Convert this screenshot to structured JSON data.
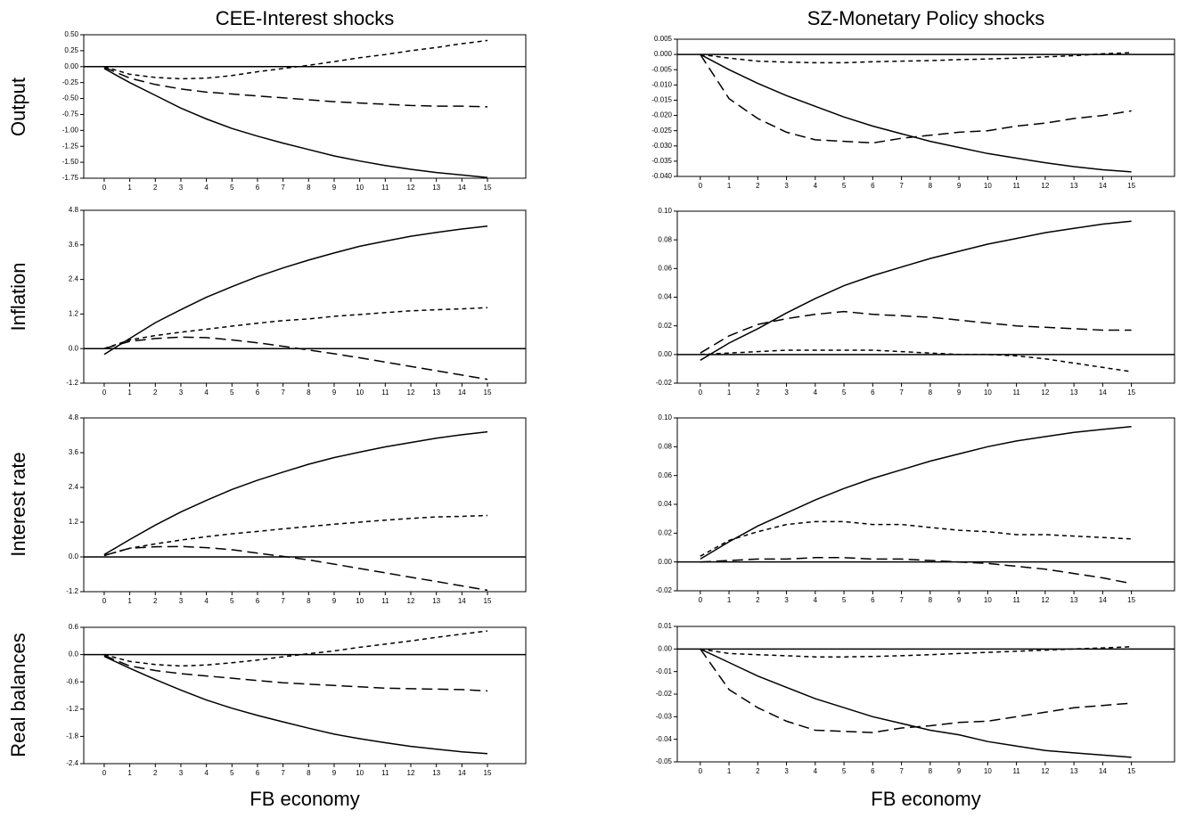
{
  "column_titles": [
    "CEE-Interest shocks",
    "SZ-Monetary Policy shocks"
  ],
  "row_labels": [
    "Output",
    "Inflation",
    "Interest rate",
    "Real balances"
  ],
  "x_labels": [
    "FB economy",
    "FB economy"
  ],
  "chart_data": [
    {
      "type": "line",
      "x": [
        0,
        1,
        2,
        3,
        4,
        5,
        6,
        7,
        8,
        9,
        10,
        11,
        12,
        13,
        14,
        15
      ],
      "xlim": [
        -0.8,
        16.5
      ],
      "ylim": [
        -1.75,
        0.5
      ],
      "yticks": [
        {
          "value": 0.5,
          "label": "0.50"
        },
        {
          "value": 0.25,
          "label": "0.25"
        },
        {
          "value": 0,
          "label": "0.00"
        },
        {
          "value": -0.25,
          "label": "-0.25"
        },
        {
          "value": -0.5,
          "label": "-0.50"
        },
        {
          "value": -0.75,
          "label": "-0.75"
        },
        {
          "value": -1,
          "label": "-1.00"
        },
        {
          "value": -1.25,
          "label": "-1.25"
        },
        {
          "value": -1.5,
          "label": "-1.50"
        },
        {
          "value": -1.75,
          "label": "-1.75"
        }
      ],
      "series": [
        {
          "style": "solid",
          "color": "#000000",
          "values": [
            -0.03,
            -0.25,
            -0.45,
            -0.65,
            -0.82,
            -0.97,
            -1.09,
            -1.2,
            -1.3,
            -1.4,
            -1.48,
            -1.55,
            -1.61,
            -1.66,
            -1.7,
            -1.74
          ]
        },
        {
          "style": "dash",
          "color": "#000000",
          "values": [
            0,
            -0.12,
            -0.17,
            -0.19,
            -0.18,
            -0.14,
            -0.08,
            -0.03,
            0.02,
            0.08,
            0.14,
            0.19,
            0.25,
            0.3,
            0.36,
            0.41
          ]
        },
        {
          "style": "longdash",
          "color": "#000000",
          "values": [
            -0.01,
            -0.18,
            -0.28,
            -0.35,
            -0.4,
            -0.43,
            -0.46,
            -0.49,
            -0.52,
            -0.55,
            -0.57,
            -0.59,
            -0.61,
            -0.62,
            -0.62,
            -0.63
          ]
        }
      ]
    },
    {
      "type": "line",
      "x": [
        0,
        1,
        2,
        3,
        4,
        5,
        6,
        7,
        8,
        9,
        10,
        11,
        12,
        13,
        14,
        15
      ],
      "xlim": [
        -0.8,
        16.5
      ],
      "ylim": [
        -0.04,
        0.005
      ],
      "yticks": [
        {
          "value": 0.005,
          "label": "0.005"
        },
        {
          "value": 0,
          "label": "0.000"
        },
        {
          "value": -0.005,
          "label": "-0.005"
        },
        {
          "value": -0.01,
          "label": "-0.010"
        },
        {
          "value": -0.015,
          "label": "-0.015"
        },
        {
          "value": -0.02,
          "label": "-0.020"
        },
        {
          "value": -0.025,
          "label": "-0.025"
        },
        {
          "value": -0.03,
          "label": "-0.030"
        },
        {
          "value": -0.035,
          "label": "-0.035"
        },
        {
          "value": -0.04,
          "label": "-0.040"
        }
      ],
      "series": [
        {
          "style": "solid",
          "color": "#000000",
          "values": [
            0,
            -0.005,
            -0.0095,
            -0.0135,
            -0.017,
            -0.0205,
            -0.0235,
            -0.026,
            -0.0285,
            -0.0305,
            -0.0325,
            -0.034,
            -0.0355,
            -0.0368,
            -0.0378,
            -0.0385
          ]
        },
        {
          "style": "dash",
          "color": "#000000",
          "values": [
            0,
            -0.0012,
            -0.0022,
            -0.0025,
            -0.0027,
            -0.0027,
            -0.0024,
            -0.0022,
            -0.002,
            -0.0017,
            -0.0015,
            -0.0012,
            -0.0008,
            -0.0004,
            0.0002,
            0.0006
          ]
        },
        {
          "style": "longdash",
          "color": "#000000",
          "values": [
            0,
            -0.0145,
            -0.021,
            -0.0255,
            -0.028,
            -0.0285,
            -0.029,
            -0.0275,
            -0.0265,
            -0.0255,
            -0.025,
            -0.0235,
            -0.0225,
            -0.021,
            -0.02,
            -0.0185
          ]
        }
      ]
    },
    {
      "type": "line",
      "x": [
        0,
        1,
        2,
        3,
        4,
        5,
        6,
        7,
        8,
        9,
        10,
        11,
        12,
        13,
        14,
        15
      ],
      "xlim": [
        -0.8,
        16.5
      ],
      "ylim": [
        -1.2,
        4.8
      ],
      "yticks": [
        4.8,
        3.6,
        2.4,
        1.2,
        {
          "value": 0,
          "label": "0.0"
        },
        -1.2
      ],
      "series": [
        {
          "style": "solid",
          "color": "#000000",
          "values": [
            -0.2,
            0.35,
            0.9,
            1.35,
            1.78,
            2.15,
            2.5,
            2.8,
            3.07,
            3.32,
            3.55,
            3.73,
            3.9,
            4.03,
            4.15,
            4.25
          ]
        },
        {
          "style": "dash",
          "color": "#000000",
          "values": [
            0,
            0.3,
            0.45,
            0.57,
            0.67,
            0.78,
            0.88,
            0.97,
            1.03,
            1.12,
            1.18,
            1.25,
            1.31,
            1.35,
            1.38,
            1.42
          ]
        },
        {
          "style": "longdash",
          "color": "#000000",
          "values": [
            0,
            0.25,
            0.35,
            0.4,
            0.38,
            0.3,
            0.2,
            0.08,
            -0.05,
            -0.18,
            -0.32,
            -0.47,
            -0.62,
            -0.77,
            -0.92,
            -1.07
          ]
        }
      ]
    },
    {
      "type": "line",
      "x": [
        0,
        1,
        2,
        3,
        4,
        5,
        6,
        7,
        8,
        9,
        10,
        11,
        12,
        13,
        14,
        15
      ],
      "xlim": [
        -0.8,
        16.5
      ],
      "ylim": [
        -0.02,
        0.1
      ],
      "yticks": [
        {
          "value": 0.1,
          "label": "0.10"
        },
        {
          "value": 0.08,
          "label": "0.08"
        },
        {
          "value": 0.06,
          "label": "0.06"
        },
        {
          "value": 0.04,
          "label": "0.04"
        },
        {
          "value": 0.02,
          "label": "0.02"
        },
        {
          "value": 0,
          "label": "0.00"
        },
        {
          "value": -0.02,
          "label": "-0.02"
        }
      ],
      "series": [
        {
          "style": "solid",
          "color": "#000000",
          "values": [
            -0.004,
            0.008,
            0.018,
            0.029,
            0.039,
            0.048,
            0.055,
            0.061,
            0.067,
            0.072,
            0.077,
            0.081,
            0.085,
            0.088,
            0.091,
            0.093
          ]
        },
        {
          "style": "longdash",
          "color": "#000000",
          "values": [
            0.001,
            0.013,
            0.021,
            0.025,
            0.028,
            0.03,
            0.028,
            0.027,
            0.026,
            0.024,
            0.022,
            0.02,
            0.019,
            0.018,
            0.017,
            0.017
          ]
        },
        {
          "style": "dash",
          "color": "#000000",
          "values": [
            0,
            0.001,
            0.002,
            0.003,
            0.003,
            0.003,
            0.003,
            0.002,
            0.001,
            0,
            0,
            -0.001,
            -0.003,
            -0.006,
            -0.009,
            -0.012
          ]
        }
      ]
    },
    {
      "type": "line",
      "x": [
        0,
        1,
        2,
        3,
        4,
        5,
        6,
        7,
        8,
        9,
        10,
        11,
        12,
        13,
        14,
        15
      ],
      "xlim": [
        -0.8,
        16.5
      ],
      "ylim": [
        -1.2,
        4.8
      ],
      "yticks": [
        4.8,
        3.6,
        2.4,
        1.2,
        {
          "value": 0,
          "label": "0.0"
        },
        -1.2
      ],
      "series": [
        {
          "style": "solid",
          "color": "#000000",
          "values": [
            0.08,
            0.6,
            1.1,
            1.55,
            1.95,
            2.33,
            2.65,
            2.93,
            3.2,
            3.43,
            3.62,
            3.8,
            3.95,
            4.1,
            4.22,
            4.32
          ]
        },
        {
          "style": "dash",
          "color": "#000000",
          "values": [
            0.05,
            0.3,
            0.45,
            0.58,
            0.7,
            0.8,
            0.88,
            0.97,
            1.05,
            1.13,
            1.2,
            1.27,
            1.33,
            1.38,
            1.4,
            1.43
          ]
        },
        {
          "style": "longdash",
          "color": "#000000",
          "values": [
            0.05,
            0.3,
            0.35,
            0.36,
            0.32,
            0.25,
            0.13,
            0.02,
            -0.1,
            -0.25,
            -0.4,
            -0.55,
            -0.7,
            -0.85,
            -1,
            -1.15
          ]
        }
      ]
    },
    {
      "type": "line",
      "x": [
        0,
        1,
        2,
        3,
        4,
        5,
        6,
        7,
        8,
        9,
        10,
        11,
        12,
        13,
        14,
        15
      ],
      "xlim": [
        -0.8,
        16.5
      ],
      "ylim": [
        -0.02,
        0.1
      ],
      "yticks": [
        {
          "value": 0.1,
          "label": "0.10"
        },
        {
          "value": 0.08,
          "label": "0.08"
        },
        {
          "value": 0.06,
          "label": "0.06"
        },
        {
          "value": 0.04,
          "label": "0.04"
        },
        {
          "value": 0.02,
          "label": "0.02"
        },
        {
          "value": 0,
          "label": "0.00"
        },
        {
          "value": -0.02,
          "label": "-0.02"
        }
      ],
      "series": [
        {
          "style": "solid",
          "color": "#000000",
          "values": [
            0.002,
            0.014,
            0.025,
            0.034,
            0.043,
            0.051,
            0.058,
            0.064,
            0.07,
            0.075,
            0.08,
            0.084,
            0.087,
            0.09,
            0.092,
            0.094
          ]
        },
        {
          "style": "dash",
          "color": "#000000",
          "values": [
            0.004,
            0.015,
            0.021,
            0.026,
            0.028,
            0.028,
            0.026,
            0.026,
            0.024,
            0.022,
            0.021,
            0.019,
            0.019,
            0.018,
            0.017,
            0.016
          ]
        },
        {
          "style": "longdash",
          "color": "#000000",
          "values": [
            0,
            0.001,
            0.002,
            0.002,
            0.003,
            0.003,
            0.002,
            0.002,
            0.001,
            0,
            -0.001,
            -0.003,
            -0.005,
            -0.008,
            -0.011,
            -0.015
          ]
        }
      ]
    },
    {
      "type": "line",
      "x": [
        0,
        1,
        2,
        3,
        4,
        5,
        6,
        7,
        8,
        9,
        10,
        11,
        12,
        13,
        14,
        15
      ],
      "xlim": [
        -0.8,
        16.5
      ],
      "ylim": [
        -2.4,
        0.6
      ],
      "yticks": [
        0.6,
        {
          "value": 0,
          "label": "0.0"
        },
        -0.6,
        -1.2,
        -1.8,
        -2.4
      ],
      "series": [
        {
          "style": "solid",
          "color": "#000000",
          "values": [
            -0.04,
            -0.3,
            -0.55,
            -0.78,
            -1,
            -1.18,
            -1.34,
            -1.48,
            -1.62,
            -1.75,
            -1.85,
            -1.94,
            -2.02,
            -2.08,
            -2.14,
            -2.18
          ]
        },
        {
          "style": "dash",
          "color": "#000000",
          "values": [
            0,
            -0.15,
            -0.22,
            -0.25,
            -0.23,
            -0.18,
            -0.12,
            -0.05,
            0.02,
            0.08,
            0.16,
            0.23,
            0.3,
            0.38,
            0.45,
            0.52
          ]
        },
        {
          "style": "longdash",
          "color": "#000000",
          "values": [
            -0.02,
            -0.25,
            -0.35,
            -0.42,
            -0.47,
            -0.52,
            -0.57,
            -0.62,
            -0.65,
            -0.68,
            -0.71,
            -0.74,
            -0.75,
            -0.76,
            -0.77,
            -0.8
          ]
        }
      ]
    },
    {
      "type": "line",
      "x": [
        0,
        1,
        2,
        3,
        4,
        5,
        6,
        7,
        8,
        9,
        10,
        11,
        12,
        13,
        14,
        15
      ],
      "xlim": [
        -0.8,
        16.5
      ],
      "ylim": [
        -0.05,
        0.01
      ],
      "yticks": [
        0.01,
        {
          "value": 0,
          "label": "0.00"
        },
        -0.01,
        -0.02,
        -0.03,
        -0.04,
        -0.05
      ],
      "series": [
        {
          "style": "solid",
          "color": "#000000",
          "values": [
            0,
            -0.006,
            -0.012,
            -0.017,
            -0.022,
            -0.026,
            -0.03,
            -0.033,
            -0.036,
            -0.038,
            -0.041,
            -0.043,
            -0.045,
            -0.046,
            -0.047,
            -0.048
          ]
        },
        {
          "style": "dash",
          "color": "#000000",
          "values": [
            0,
            -0.002,
            -0.0025,
            -0.003,
            -0.0035,
            -0.0035,
            -0.0033,
            -0.003,
            -0.0025,
            -0.002,
            -0.0015,
            -0.001,
            -0.0005,
            0,
            0.0005,
            0.001
          ]
        },
        {
          "style": "longdash",
          "color": "#000000",
          "values": [
            0,
            -0.018,
            -0.026,
            -0.032,
            -0.036,
            -0.0365,
            -0.037,
            -0.035,
            -0.034,
            -0.0325,
            -0.032,
            -0.03,
            -0.028,
            -0.026,
            -0.025,
            -0.024
          ]
        }
      ]
    }
  ]
}
